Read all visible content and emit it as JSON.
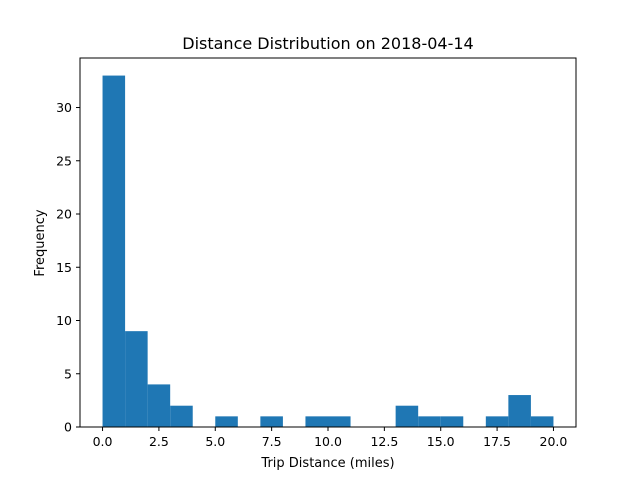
{
  "chart_data": {
    "type": "bar",
    "title": "Distance Distribution on 2018-04-14",
    "xlabel": "Trip Distance (miles)",
    "ylabel": "Frequency",
    "xlim": [
      -1,
      21
    ],
    "ylim": [
      0,
      34.65
    ],
    "bin_width": 1,
    "bins": [
      {
        "start": 0,
        "end": 1,
        "count": 33
      },
      {
        "start": 1,
        "end": 2,
        "count": 9
      },
      {
        "start": 2,
        "end": 3,
        "count": 4
      },
      {
        "start": 3,
        "end": 4,
        "count": 2
      },
      {
        "start": 4,
        "end": 5,
        "count": 0
      },
      {
        "start": 5,
        "end": 6,
        "count": 1
      },
      {
        "start": 6,
        "end": 7,
        "count": 0
      },
      {
        "start": 7,
        "end": 8,
        "count": 1
      },
      {
        "start": 8,
        "end": 9,
        "count": 0
      },
      {
        "start": 9,
        "end": 10,
        "count": 1
      },
      {
        "start": 10,
        "end": 11,
        "count": 1
      },
      {
        "start": 11,
        "end": 12,
        "count": 0
      },
      {
        "start": 12,
        "end": 13,
        "count": 0
      },
      {
        "start": 13,
        "end": 14,
        "count": 2
      },
      {
        "start": 14,
        "end": 15,
        "count": 1
      },
      {
        "start": 15,
        "end": 16,
        "count": 1
      },
      {
        "start": 16,
        "end": 17,
        "count": 0
      },
      {
        "start": 17,
        "end": 18,
        "count": 1
      },
      {
        "start": 18,
        "end": 19,
        "count": 3
      },
      {
        "start": 19,
        "end": 20,
        "count": 1
      }
    ],
    "x_ticks": [
      {
        "value": 0,
        "label": "0.0"
      },
      {
        "value": 2.5,
        "label": "2.5"
      },
      {
        "value": 5,
        "label": "5.0"
      },
      {
        "value": 7.5,
        "label": "7.5"
      },
      {
        "value": 10,
        "label": "10.0"
      },
      {
        "value": 12.5,
        "label": "12.5"
      },
      {
        "value": 15,
        "label": "15.0"
      },
      {
        "value": 17.5,
        "label": "17.5"
      },
      {
        "value": 20,
        "label": "20.0"
      }
    ],
    "y_ticks": [
      {
        "value": 0,
        "label": "0"
      },
      {
        "value": 5,
        "label": "5"
      },
      {
        "value": 10,
        "label": "10"
      },
      {
        "value": 15,
        "label": "15"
      },
      {
        "value": 20,
        "label": "20"
      },
      {
        "value": 25,
        "label": "25"
      },
      {
        "value": 30,
        "label": "30"
      }
    ],
    "grid": false,
    "bar_color": "#1f77b4"
  }
}
